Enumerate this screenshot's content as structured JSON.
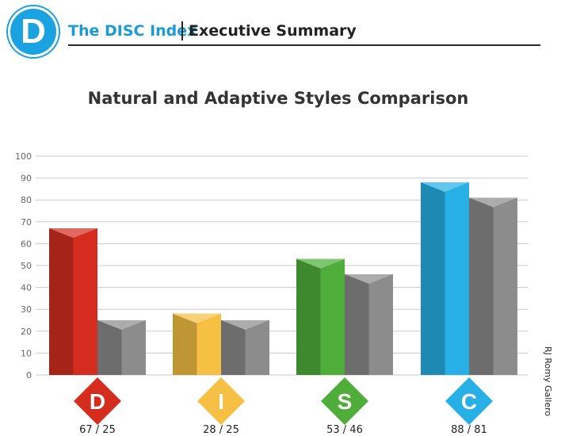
{
  "header": {
    "logo_letter": "D",
    "brand": "The DISC Index",
    "section": "Executive Summary"
  },
  "credit": "RJ Romy Gallero",
  "colors": {
    "brand_blue": "#1aa3e0",
    "D": "#d42d1f",
    "I": "#f5c043",
    "S": "#4fae3a",
    "C": "#27b0e6",
    "adaptive_gray": "#8c8c8c"
  },
  "chart_data": {
    "type": "bar",
    "title": "Natural and Adaptive Styles Comparison",
    "categories": [
      "D",
      "I",
      "S",
      "C"
    ],
    "series": [
      {
        "values": [
          67,
          28,
          53,
          88
        ]
      },
      {
        "values": [
          25,
          25,
          46,
          81
        ]
      }
    ],
    "category_labels": [
      "67 / 25",
      "28 / 25",
      "53 / 46",
      "88 / 81"
    ],
    "y_ticks": [
      "0",
      "10",
      "20",
      "30",
      "40",
      "50",
      "60",
      "70",
      "80",
      "90",
      "100"
    ],
    "ylim": [
      0,
      100
    ],
    "grid": true,
    "legend": "none"
  }
}
